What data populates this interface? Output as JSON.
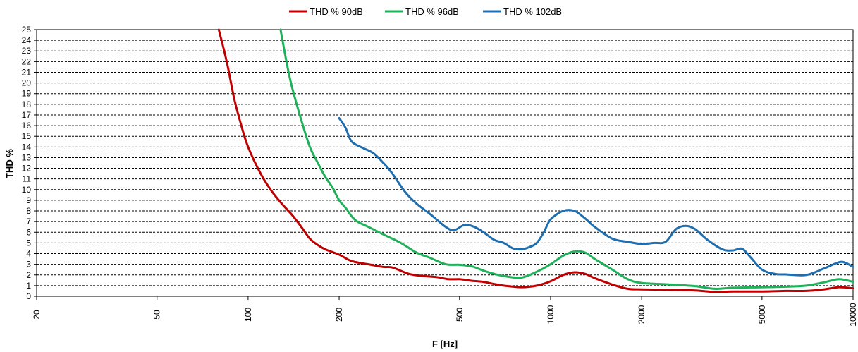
{
  "chart_data": {
    "type": "line",
    "title": "",
    "xlabel": "F [Hz]",
    "ylabel": "THD %",
    "x_scale": "log",
    "xlim": [
      20,
      10000
    ],
    "ylim": [
      0,
      25
    ],
    "x_ticks": [
      "20",
      "50",
      "100",
      "200",
      "500",
      "1000",
      "2000",
      "5000",
      "10000"
    ],
    "y_ticks": [
      "0",
      "1",
      "2",
      "3",
      "4",
      "5",
      "6",
      "7",
      "8",
      "9",
      "10",
      "11",
      "12",
      "13",
      "14",
      "15",
      "16",
      "17",
      "18",
      "19",
      "20",
      "21",
      "22",
      "23",
      "24",
      "25"
    ],
    "grid": "horizontal dashed",
    "legend_position": "top-center",
    "series": [
      {
        "name": "THD % 90dB",
        "color": "#c00000",
        "points": [
          [
            80,
            25
          ],
          [
            85,
            22
          ],
          [
            90,
            18.5
          ],
          [
            95,
            16
          ],
          [
            100,
            14
          ],
          [
            110,
            11.5
          ],
          [
            120,
            9.8
          ],
          [
            130,
            8.6
          ],
          [
            140,
            7.6
          ],
          [
            150,
            6.5
          ],
          [
            160,
            5.4
          ],
          [
            170,
            4.8
          ],
          [
            180,
            4.4
          ],
          [
            200,
            3.9
          ],
          [
            220,
            3.3
          ],
          [
            250,
            3.0
          ],
          [
            280,
            2.75
          ],
          [
            300,
            2.7
          ],
          [
            340,
            2.1
          ],
          [
            380,
            1.9
          ],
          [
            420,
            1.8
          ],
          [
            460,
            1.6
          ],
          [
            500,
            1.6
          ],
          [
            550,
            1.45
          ],
          [
            600,
            1.35
          ],
          [
            650,
            1.15
          ],
          [
            700,
            1.0
          ],
          [
            800,
            0.85
          ],
          [
            900,
            1.0
          ],
          [
            1000,
            1.4
          ],
          [
            1100,
            2.0
          ],
          [
            1200,
            2.25
          ],
          [
            1300,
            2.1
          ],
          [
            1400,
            1.7
          ],
          [
            1600,
            1.1
          ],
          [
            1800,
            0.7
          ],
          [
            2000,
            0.65
          ],
          [
            2500,
            0.6
          ],
          [
            3000,
            0.55
          ],
          [
            3500,
            0.4
          ],
          [
            4000,
            0.45
          ],
          [
            5000,
            0.45
          ],
          [
            6000,
            0.5
          ],
          [
            7000,
            0.5
          ],
          [
            8000,
            0.65
          ],
          [
            9000,
            0.85
          ],
          [
            10000,
            0.75
          ]
        ]
      },
      {
        "name": "THD % 96dB",
        "color": "#1fb05a",
        "points": [
          [
            128,
            25
          ],
          [
            135,
            21.5
          ],
          [
            140,
            19.5
          ],
          [
            150,
            16.5
          ],
          [
            160,
            14
          ],
          [
            170,
            12.5
          ],
          [
            180,
            11.2
          ],
          [
            190,
            10.2
          ],
          [
            200,
            9.0
          ],
          [
            210,
            8.3
          ],
          [
            220,
            7.5
          ],
          [
            230,
            7.0
          ],
          [
            250,
            6.5
          ],
          [
            280,
            5.8
          ],
          [
            320,
            5.0
          ],
          [
            360,
            4.1
          ],
          [
            400,
            3.6
          ],
          [
            450,
            3.0
          ],
          [
            500,
            2.95
          ],
          [
            550,
            2.8
          ],
          [
            600,
            2.4
          ],
          [
            650,
            2.1
          ],
          [
            700,
            1.9
          ],
          [
            800,
            1.75
          ],
          [
            900,
            2.3
          ],
          [
            1000,
            3.0
          ],
          [
            1100,
            3.8
          ],
          [
            1200,
            4.2
          ],
          [
            1300,
            4.1
          ],
          [
            1400,
            3.5
          ],
          [
            1600,
            2.5
          ],
          [
            1800,
            1.6
          ],
          [
            2000,
            1.25
          ],
          [
            2500,
            1.1
          ],
          [
            3000,
            0.95
          ],
          [
            3500,
            0.7
          ],
          [
            4000,
            0.8
          ],
          [
            5000,
            0.85
          ],
          [
            6000,
            0.9
          ],
          [
            7000,
            1.0
          ],
          [
            8000,
            1.3
          ],
          [
            9000,
            1.6
          ],
          [
            10000,
            1.35
          ]
        ]
      },
      {
        "name": "THD % 102dB",
        "color": "#1f6fb0",
        "points": [
          [
            200,
            16.7
          ],
          [
            210,
            15.8
          ],
          [
            220,
            14.5
          ],
          [
            240,
            13.9
          ],
          [
            260,
            13.4
          ],
          [
            280,
            12.5
          ],
          [
            300,
            11.5
          ],
          [
            330,
            9.8
          ],
          [
            360,
            8.7
          ],
          [
            400,
            7.7
          ],
          [
            450,
            6.5
          ],
          [
            480,
            6.2
          ],
          [
            520,
            6.7
          ],
          [
            560,
            6.5
          ],
          [
            600,
            6.0
          ],
          [
            650,
            5.3
          ],
          [
            700,
            5.0
          ],
          [
            750,
            4.5
          ],
          [
            800,
            4.4
          ],
          [
            850,
            4.6
          ],
          [
            900,
            5.0
          ],
          [
            950,
            6.0
          ],
          [
            1000,
            7.2
          ],
          [
            1100,
            8.0
          ],
          [
            1200,
            8.0
          ],
          [
            1300,
            7.3
          ],
          [
            1400,
            6.5
          ],
          [
            1600,
            5.4
          ],
          [
            1800,
            5.1
          ],
          [
            2000,
            4.9
          ],
          [
            2200,
            5.0
          ],
          [
            2400,
            5.1
          ],
          [
            2600,
            6.3
          ],
          [
            2800,
            6.6
          ],
          [
            3000,
            6.3
          ],
          [
            3300,
            5.3
          ],
          [
            3700,
            4.4
          ],
          [
            4000,
            4.3
          ],
          [
            4300,
            4.45
          ],
          [
            4600,
            3.6
          ],
          [
            5000,
            2.5
          ],
          [
            5500,
            2.1
          ],
          [
            6000,
            2.05
          ],
          [
            7000,
            2.0
          ],
          [
            8000,
            2.6
          ],
          [
            9000,
            3.2
          ],
          [
            9500,
            3.1
          ],
          [
            10000,
            2.75
          ]
        ]
      }
    ]
  }
}
